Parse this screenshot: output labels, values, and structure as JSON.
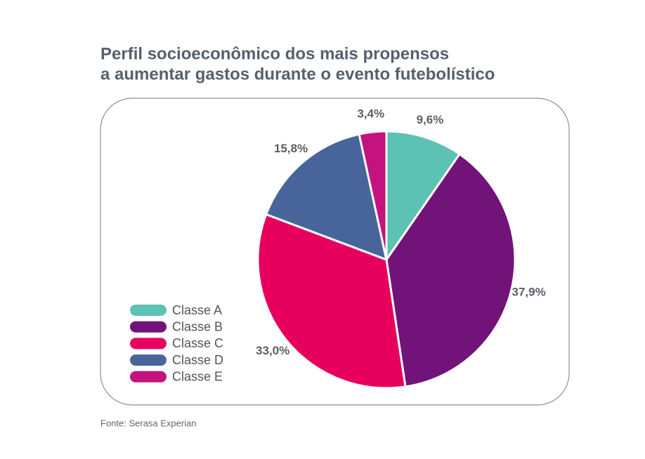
{
  "chart_data": {
    "type": "pie",
    "title": [
      "Perfil socioeconômico dos mais propensos",
      "a aumentar gastos durante o evento futebolístico"
    ],
    "categories": [
      "Classe A",
      "Classe B",
      "Classe C",
      "Classe D",
      "Classe E"
    ],
    "values": [
      9.6,
      37.9,
      33.0,
      15.8,
      3.4
    ],
    "value_labels": [
      "9,6%",
      "37,9%",
      "33,0%",
      "15,8%",
      "3,4%"
    ],
    "colors": [
      "#5cc2b4",
      "#72137a",
      "#e8005e",
      "#47659a",
      "#c3137f"
    ],
    "legend": "bottom-left",
    "source": "Fonte: Serasa Experian"
  }
}
